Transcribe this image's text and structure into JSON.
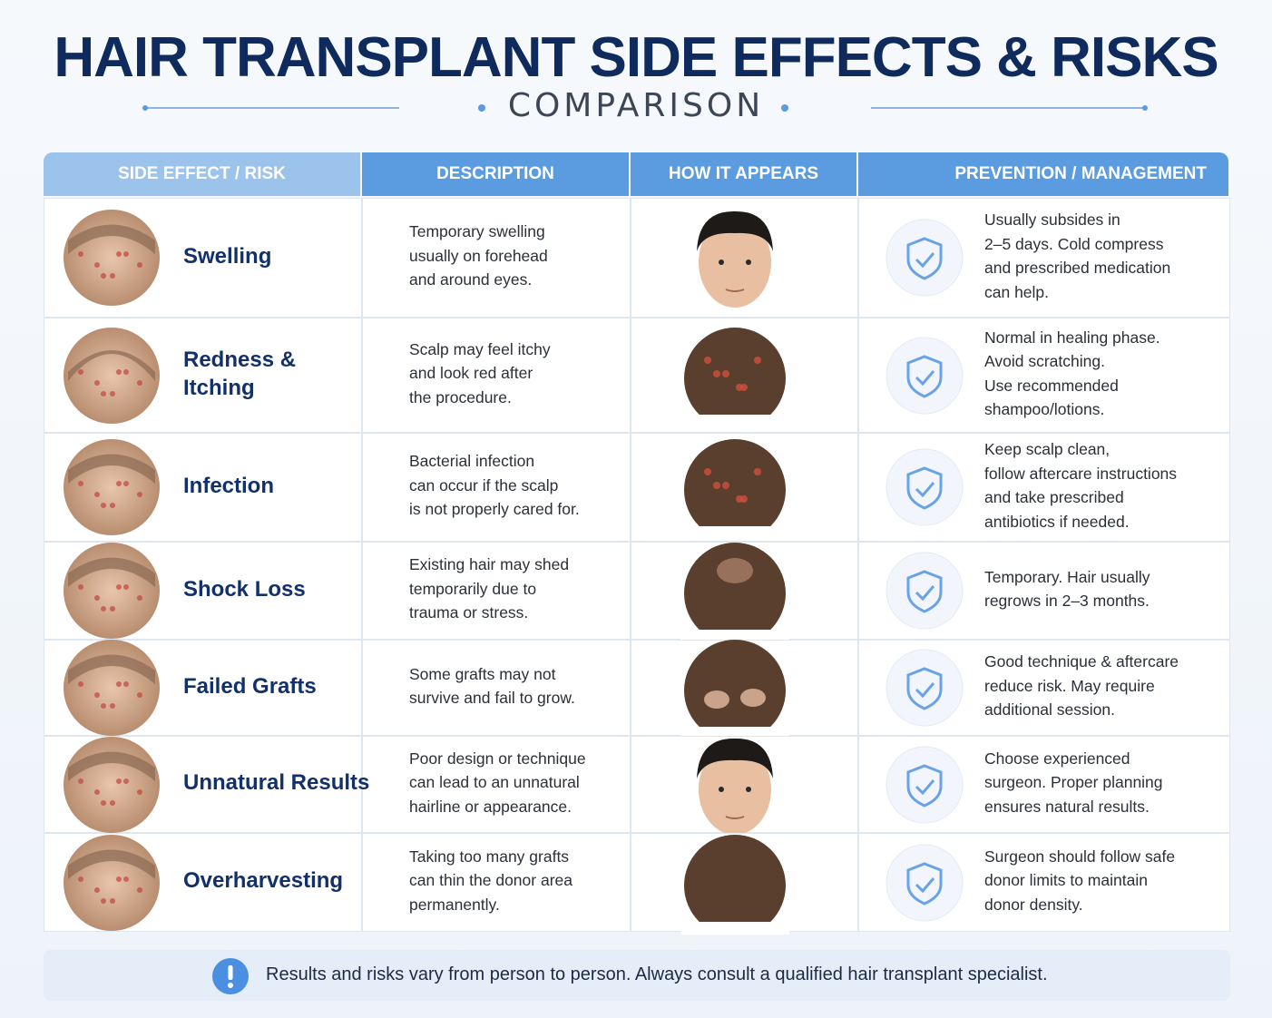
{
  "header": {
    "title": "HAIR TRANSPLANT SIDE EFFECTS & RISKS",
    "subtitle": "COMPARISON"
  },
  "table": {
    "columns": [
      "SIDE EFFECT / RISK",
      "DESCRIPTION",
      "HOW IT APPEARS",
      "PREVENTION / MANAGEMENT"
    ],
    "rows": [
      {
        "name": [
          "Swelling"
        ],
        "description": [
          "Temporary swelling",
          "usually on forehead",
          "and around eyes."
        ],
        "prevention": [
          "Usually subsides in",
          "2–5 days. Cold compress",
          "and prescribed medication",
          "can help."
        ]
      },
      {
        "name": [
          "Redness &",
          "Itching"
        ],
        "description": [
          "Scalp may feel itchy",
          "and look red after",
          "the procedure."
        ],
        "prevention": [
          "Normal in healing phase.",
          "Avoid scratching.",
          "Use recommended",
          "shampoo/lotions."
        ]
      },
      {
        "name": [
          "Infection"
        ],
        "description": [
          "Bacterial infection",
          "can occur if the scalp",
          "is not properly cared for."
        ],
        "prevention": [
          "Keep scalp clean,",
          "follow aftercare instructions",
          "and take prescribed",
          "antibiotics if needed."
        ]
      },
      {
        "name": [
          "Shock Loss"
        ],
        "description": [
          "Existing hair may shed",
          "temporarily due to",
          "trauma or stress."
        ],
        "prevention": [
          "Temporary. Hair usually",
          "regrows in 2–3 months."
        ]
      },
      {
        "name": [
          "Failed Grafts"
        ],
        "description": [
          "Some grafts may not",
          "survive and fail to grow."
        ],
        "prevention": [
          "Good technique & aftercare",
          "reduce risk. May require",
          "additional session."
        ]
      },
      {
        "name": [
          "Unnatural Results"
        ],
        "description": [
          "Poor design or technique",
          "can lead to an unnatural",
          "hairline or appearance."
        ],
        "prevention": [
          "Choose experienced",
          "surgeon. Proper planning",
          "ensures natural results."
        ]
      },
      {
        "name": [
          "Overharvesting"
        ],
        "description": [
          "Taking too many grafts",
          "can thin the donor area",
          "permanently."
        ],
        "prevention": [
          "Surgeon should follow safe",
          "donor limits to maintain",
          "donor density."
        ]
      }
    ]
  },
  "footer": {
    "note": "Results and risks vary from person to person. Always consult a qualified hair transplant specialist."
  }
}
